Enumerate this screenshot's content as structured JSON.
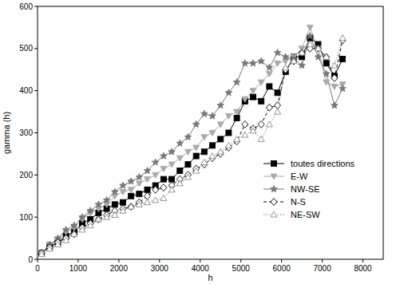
{
  "chart_data": {
    "type": "line",
    "x_label": "h",
    "y_label": "gamma (h)",
    "x": [
      100,
      300,
      500,
      700,
      900,
      1100,
      1300,
      1500,
      1700,
      1900,
      2100,
      2300,
      2500,
      2700,
      2900,
      3100,
      3300,
      3500,
      3700,
      3900,
      4100,
      4300,
      4500,
      4700,
      4900,
      5100,
      5300,
      5500,
      5700,
      5900,
      6100,
      6300,
      6500,
      6700,
      6900,
      7100,
      7300,
      7500
    ],
    "series": [
      {
        "name": "toutes directions",
        "color": "#000000",
        "marker": "square",
        "line_style": "solid",
        "values": [
          15,
          30,
          40,
          55,
          65,
          85,
          95,
          110,
          120,
          130,
          135,
          150,
          155,
          165,
          175,
          190,
          190,
          210,
          225,
          245,
          255,
          270,
          285,
          300,
          335,
          375,
          385,
          375,
          410,
          395,
          445,
          480,
          480,
          525,
          510,
          465,
          435,
          475
        ]
      },
      {
        "name": "E-W",
        "color": "#aaaaaa",
        "marker": "triangle-down",
        "line_style": "solid",
        "values": [
          15,
          35,
          45,
          65,
          75,
          95,
          110,
          120,
          130,
          150,
          160,
          165,
          180,
          190,
          200,
          215,
          225,
          240,
          255,
          265,
          290,
          300,
          320,
          340,
          350,
          380,
          400,
          420,
          440,
          465,
          470,
          480,
          500,
          550,
          500,
          420,
          410,
          415
        ]
      },
      {
        "name": "NW-SE",
        "color": "#777777",
        "marker": "star",
        "line_style": "solid",
        "values": [
          15,
          35,
          50,
          70,
          80,
          100,
          115,
          130,
          140,
          160,
          175,
          185,
          195,
          210,
          230,
          245,
          255,
          275,
          290,
          320,
          345,
          340,
          365,
          395,
          420,
          465,
          465,
          470,
          455,
          490,
          480,
          475,
          460,
          530,
          480,
          440,
          365,
          405
        ]
      },
      {
        "name": "N-S",
        "color": "#000000",
        "marker": "open-diamond",
        "line_style": "dashed",
        "values": [
          15,
          28,
          40,
          50,
          60,
          75,
          85,
          95,
          105,
          115,
          120,
          125,
          135,
          150,
          165,
          170,
          175,
          190,
          200,
          215,
          225,
          240,
          250,
          265,
          280,
          320,
          310,
          320,
          360,
          365,
          450,
          470,
          490,
          500,
          500,
          480,
          430,
          520
        ]
      },
      {
        "name": "NE-SW",
        "color": "#888888",
        "marker": "open-triangle-up",
        "line_style": "dotted",
        "values": [
          12,
          25,
          35,
          45,
          60,
          70,
          80,
          95,
          100,
          105,
          115,
          125,
          130,
          135,
          140,
          145,
          165,
          180,
          195,
          210,
          230,
          245,
          255,
          270,
          285,
          295,
          305,
          285,
          320,
          350,
          455,
          470,
          490,
          510,
          500,
          480,
          460,
          525
        ]
      }
    ],
    "xlim": [
      0,
      8500
    ],
    "xticks": [
      0,
      1000,
      2000,
      3000,
      4000,
      5000,
      6000,
      7000,
      8000
    ],
    "ylim": [
      0,
      600
    ],
    "yticks": [
      0,
      100,
      200,
      300,
      400,
      500,
      600
    ],
    "grid": false,
    "legend": "lower right"
  }
}
